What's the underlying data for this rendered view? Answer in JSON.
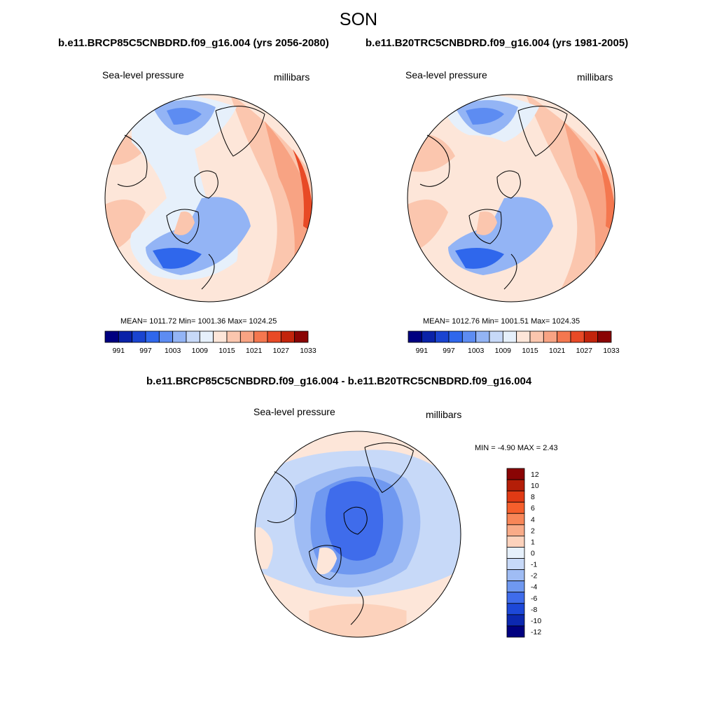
{
  "figure": {
    "title": "SON",
    "top_left_case": "b.e11.BRCP85C5CNBDRD.f09_g16.004 (yrs 2056-2080)",
    "top_right_case": "b.e11.B20TRC5CNBDRD.f09_g16.004 (yrs 1981-2005)",
    "diff_case": "b.e11.BRCP85C5CNBDRD.f09_g16.004 - b.e11.B20TRC5CNBDRD.f09_g16.004"
  },
  "panels": {
    "left": {
      "variable": "Sea-level pressure",
      "units": "millibars",
      "stats": "MEAN= 1011.72  Min= 1001.36  Max= 1024.25"
    },
    "right": {
      "variable": "Sea-level pressure",
      "units": "millibars",
      "stats": "MEAN= 1012.76  Min= 1001.51  Max= 1024.35"
    },
    "diff": {
      "variable": "Sea-level pressure",
      "units": "millibars",
      "stats": "MIN =  -4.90 MAX =   2.43"
    }
  },
  "chart_data": [
    {
      "type": "heatmap",
      "title": "Sea-level pressure",
      "units": "millibars",
      "projection": "north polar stereographic",
      "mean": 1011.72,
      "min": 1001.36,
      "max": 1024.25,
      "colorbar_levels": [
        991,
        994,
        997,
        1000,
        1003,
        1006,
        1009,
        1012,
        1015,
        1018,
        1021,
        1024,
        1027,
        1030,
        1033
      ],
      "colorbar_tick_labels": [
        "991",
        "997",
        "1003",
        "1009",
        "1015",
        "1021",
        "1027",
        "1033"
      ]
    },
    {
      "type": "heatmap",
      "title": "Sea-level pressure",
      "units": "millibars",
      "projection": "north polar stereographic",
      "mean": 1012.76,
      "min": 1001.51,
      "max": 1024.35,
      "colorbar_levels": [
        991,
        994,
        997,
        1000,
        1003,
        1006,
        1009,
        1012,
        1015,
        1018,
        1021,
        1024,
        1027,
        1030,
        1033
      ],
      "colorbar_tick_labels": [
        "991",
        "997",
        "1003",
        "1009",
        "1015",
        "1021",
        "1027",
        "1033"
      ]
    },
    {
      "type": "heatmap",
      "title": "Sea-level pressure",
      "units": "millibars",
      "projection": "north polar stereographic",
      "min": -4.9,
      "max": 2.43,
      "colorbar_tick_labels": [
        "12",
        "10",
        "8",
        "6",
        "4",
        "2",
        "1",
        "0",
        "-1",
        "-2",
        "-4",
        "-6",
        "-8",
        "-10",
        "-12"
      ]
    }
  ],
  "colors": {
    "sequential": [
      "#000080",
      "#0a22a8",
      "#1a44d0",
      "#2f67ec",
      "#5d8cf2",
      "#93b4f5",
      "#c7d9f8",
      "#e6f0fb",
      "#fde6d9",
      "#fbc6ae",
      "#f8a383",
      "#f4774f",
      "#e84a26",
      "#c2240c",
      "#8a0404"
    ],
    "diff": [
      "#8a0404",
      "#b41e08",
      "#e03a14",
      "#f55f2c",
      "#f88658",
      "#f9ab88",
      "#fcd2bc",
      "#e6f0fb",
      "#c7d9f8",
      "#9fbcf4",
      "#6f98f0",
      "#3f6ceb",
      "#1d48d8",
      "#0c28b0",
      "#000080"
    ]
  }
}
